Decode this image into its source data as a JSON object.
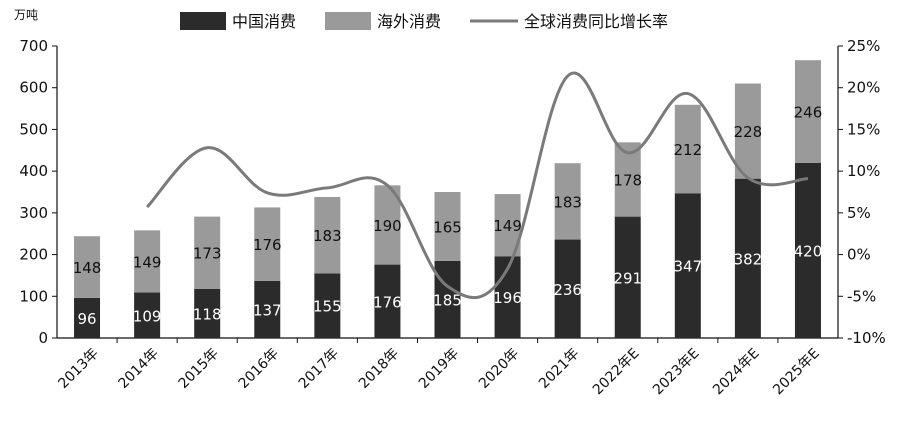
{
  "chart_data": {
    "type": "bar",
    "stacked": true,
    "unit_label": "万吨",
    "categories": [
      "2013年",
      "2014年",
      "2015年",
      "2016年",
      "2017年",
      "2018年",
      "2019年",
      "2020年",
      "2021年",
      "2022年E",
      "2023年E",
      "2024年E",
      "2025年E"
    ],
    "series": [
      {
        "name": "中国消费",
        "type": "bar",
        "axis": "left",
        "color": "#2b2b2b",
        "values": [
          96,
          109,
          118,
          137,
          155,
          176,
          185,
          196,
          236,
          291,
          347,
          382,
          420
        ]
      },
      {
        "name": "海外消费",
        "type": "bar",
        "axis": "left",
        "color": "#9a9a9a",
        "values": [
          148,
          149,
          173,
          176,
          183,
          190,
          165,
          149,
          183,
          178,
          212,
          228,
          246
        ]
      },
      {
        "name": "全球消费同比增长率",
        "type": "line",
        "axis": "right",
        "color": "#7a7a7a",
        "values": [
          null,
          5.7,
          12.8,
          7.4,
          8.0,
          8.3,
          -3.8,
          -1.7,
          21.4,
          12.2,
          19.3,
          9.2,
          9.1
        ]
      }
    ],
    "y_left": {
      "min": 0,
      "max": 700,
      "ticks": [
        0,
        100,
        200,
        300,
        400,
        500,
        600,
        700
      ]
    },
    "y_right": {
      "min": -10,
      "max": 25,
      "ticks": [
        "-10%",
        "-5%",
        "0%",
        "5%",
        "10%",
        "15%",
        "20%",
        "25%"
      ]
    },
    "legend_position": "top",
    "grid": false
  }
}
